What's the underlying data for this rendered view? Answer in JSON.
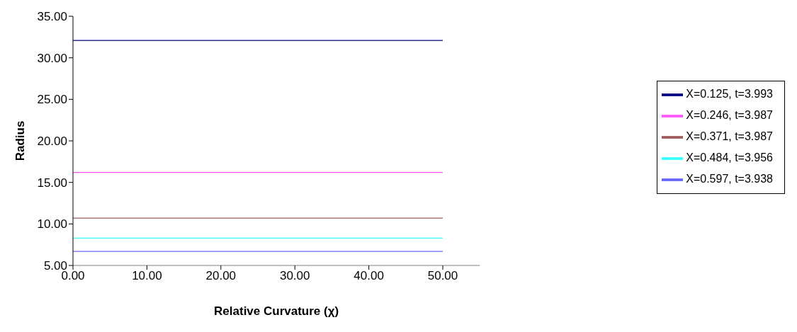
{
  "chart_data": {
    "type": "line",
    "xlabel": "Relative Curvature (χ)",
    "ylabel": "Radius",
    "x": [
      0,
      50
    ],
    "series": [
      {
        "name": "X=0.125, t=3.993",
        "color": "#000080",
        "values": [
          32.1,
          32.1
        ]
      },
      {
        "name": "X=0.246, t=3.987",
        "color": "#ff55ff",
        "values": [
          16.2,
          16.2
        ]
      },
      {
        "name": "X=0.371, t=3.987",
        "color": "#a05a5a",
        "values": [
          10.7,
          10.7
        ]
      },
      {
        "name": "X=0.484, t=3.956",
        "color": "#33ffff",
        "values": [
          8.3,
          8.3
        ]
      },
      {
        "name": "X=0.597, t=3.938",
        "color": "#6666ff",
        "values": [
          6.7,
          6.7
        ]
      }
    ],
    "xlim": [
      0,
      55
    ],
    "xticks": [
      {
        "value": 0,
        "label": "0.00"
      },
      {
        "value": 10,
        "label": "10.00"
      },
      {
        "value": 20,
        "label": "20.00"
      },
      {
        "value": 30,
        "label": "30.00"
      },
      {
        "value": 40,
        "label": "40.00"
      },
      {
        "value": 50,
        "label": "50.00"
      }
    ],
    "ylim": [
      5,
      35
    ],
    "yticks": [
      {
        "value": 5,
        "label": "5.00"
      },
      {
        "value": 10,
        "label": "10.00"
      },
      {
        "value": 15,
        "label": "15.00"
      },
      {
        "value": 20,
        "label": "20.00"
      },
      {
        "value": 25,
        "label": "25.00"
      },
      {
        "value": 30,
        "label": "30.00"
      },
      {
        "value": 35,
        "label": "35.00"
      }
    ],
    "grid": false,
    "legend": "right",
    "marker": "none",
    "line_style": "solid"
  }
}
